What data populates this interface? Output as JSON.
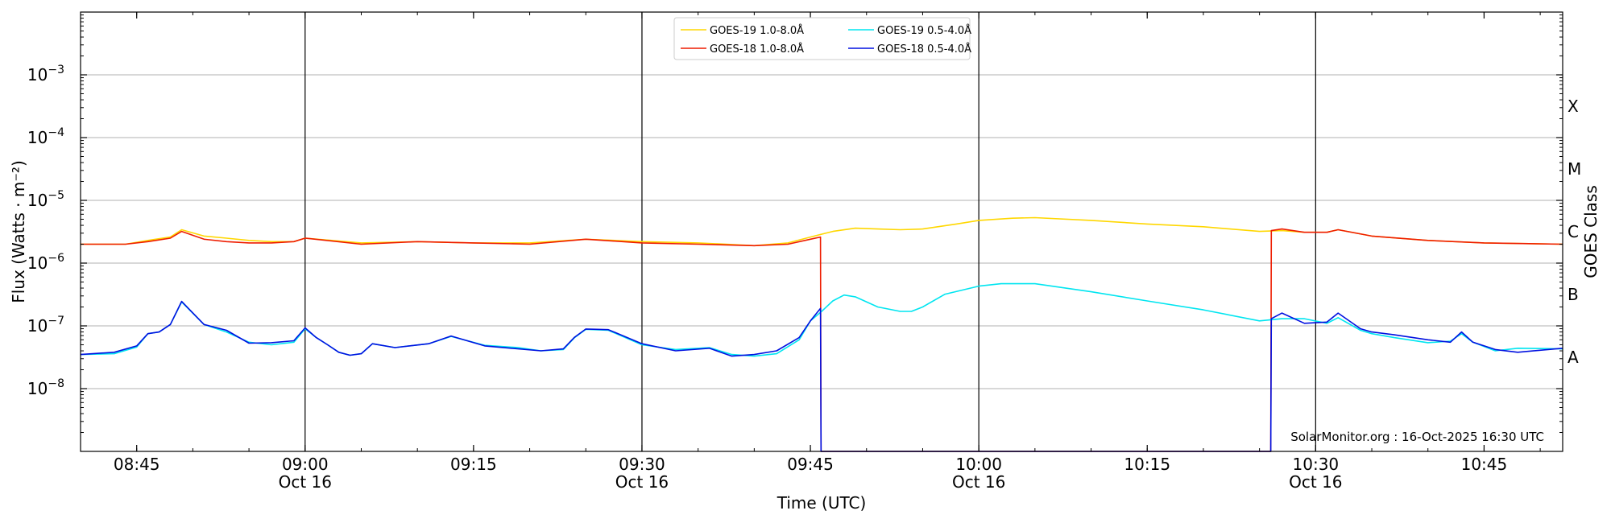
{
  "chart_data": {
    "type": "line",
    "xlabel": "Time (UTC)",
    "ylabel": "Flux (Watts · m⁻²)",
    "y2label": "GOES Class",
    "yscale": "log",
    "xlim": [
      "08:40",
      "10:52"
    ],
    "ylim": [
      1e-09,
      0.01
    ],
    "grid": "horizontal",
    "legend_position": "top-center",
    "credit": "SolarMonitor.org : 16-Oct-2025 16:30 UTC",
    "x_ticks": [
      {
        "time": "08:45",
        "label": "08:45",
        "sub": ""
      },
      {
        "time": "09:00",
        "label": "09:00",
        "sub": "Oct 16"
      },
      {
        "time": "09:15",
        "label": "09:15",
        "sub": ""
      },
      {
        "time": "09:30",
        "label": "09:30",
        "sub": "Oct 16"
      },
      {
        "time": "09:45",
        "label": "09:45",
        "sub": ""
      },
      {
        "time": "10:00",
        "label": "10:00",
        "sub": "Oct 16"
      },
      {
        "time": "10:15",
        "label": "10:15",
        "sub": ""
      },
      {
        "time": "10:30",
        "label": "10:30",
        "sub": "Oct 16"
      },
      {
        "time": "10:45",
        "label": "10:45",
        "sub": ""
      }
    ],
    "vlines": [
      "09:00",
      "09:30",
      "10:00",
      "10:30"
    ],
    "y_ticks": [
      {
        "exp": -8,
        "value": 1e-08
      },
      {
        "exp": -7,
        "value": 1e-07
      },
      {
        "exp": -6,
        "value": 1e-06
      },
      {
        "exp": -5,
        "value": 1e-05
      },
      {
        "exp": -4,
        "value": 0.0001
      },
      {
        "exp": -3,
        "value": 0.001
      }
    ],
    "classes": [
      {
        "label": "A",
        "value": 3.16e-08
      },
      {
        "label": "B",
        "value": 3.16e-07
      },
      {
        "label": "C",
        "value": 3.16e-06
      },
      {
        "label": "M",
        "value": 3.16e-05
      },
      {
        "label": "X",
        "value": 0.000316
      }
    ],
    "series": [
      {
        "name": "GOES-19 1.0-8.0Å",
        "color": "#ffd700",
        "x": [
          "08:40",
          "08:44",
          "08:46",
          "08:48",
          "08:49",
          "08:51",
          "08:53",
          "08:55",
          "08:57",
          "08:59",
          "09:00",
          "09:05",
          "09:10",
          "09:15",
          "09:20",
          "09:25",
          "09:30",
          "09:35",
          "09:40",
          "09:43",
          "09:45",
          "09:47",
          "09:49",
          "09:51",
          "09:53",
          "09:55",
          "09:58",
          "10:00",
          "10:03",
          "10:05",
          "10:10",
          "10:15",
          "10:20",
          "10:25",
          "10:27",
          "10:29",
          "10:31",
          "10:32",
          "10:35",
          "10:40",
          "10:45",
          "10:52"
        ],
        "y": [
          2e-06,
          2e-06,
          2.3e-06,
          2.6e-06,
          3.4e-06,
          2.7e-06,
          2.5e-06,
          2.3e-06,
          2.2e-06,
          2.2e-06,
          2.5e-06,
          2.1e-06,
          2.2e-06,
          2.1e-06,
          2.1e-06,
          2.4e-06,
          2.2e-06,
          2.1e-06,
          1.9e-06,
          2.1e-06,
          2.6e-06,
          3.2e-06,
          3.6e-06,
          3.5e-06,
          3.4e-06,
          3.5e-06,
          4.2e-06,
          4.8e-06,
          5.2e-06,
          5.3e-06,
          4.8e-06,
          4.2e-06,
          3.8e-06,
          3.2e-06,
          3.3e-06,
          3.1e-06,
          3.1e-06,
          3.4e-06,
          2.7e-06,
          2.3e-06,
          2.1e-06,
          2e-06
        ]
      },
      {
        "name": "GOES-18 1.0-8.0Å",
        "color": "#ee1c00",
        "x": [
          "08:40",
          "08:44",
          "08:46",
          "08:48",
          "08:49",
          "08:51",
          "08:53",
          "08:55",
          "08:57",
          "08:59",
          "09:00",
          "09:05",
          "09:10",
          "09:15",
          "09:20",
          "09:25",
          "09:30",
          "09:35",
          "09:40",
          "09:43",
          "09:45",
          "09:45.9",
          "09:45.95",
          "09:46",
          "10:25.95",
          "10:26",
          "10:26.05",
          "10:27",
          "10:29",
          "10:31",
          "10:32",
          "10:35",
          "10:40",
          "10:45",
          "10:52"
        ],
        "y": [
          2e-06,
          2e-06,
          2.2e-06,
          2.5e-06,
          3.2e-06,
          2.4e-06,
          2.2e-06,
          2.1e-06,
          2.1e-06,
          2.2e-06,
          2.5e-06,
          2e-06,
          2.2e-06,
          2.1e-06,
          2e-06,
          2.4e-06,
          2.1e-06,
          2e-06,
          1.9e-06,
          2e-06,
          2.4e-06,
          2.6e-06,
          1e-09,
          1e-09,
          1e-09,
          1e-09,
          3.3e-06,
          3.5e-06,
          3.1e-06,
          3.1e-06,
          3.4e-06,
          2.7e-06,
          2.3e-06,
          2.1e-06,
          2e-06
        ]
      },
      {
        "name": "GOES-19 0.5-4.0Å",
        "color": "#00e5f0",
        "x": [
          "08:40",
          "08:43",
          "08:45",
          "08:46",
          "08:47",
          "08:48",
          "08:49",
          "08:51",
          "08:53",
          "08:55",
          "08:57",
          "08:59",
          "09:00",
          "09:01",
          "09:02",
          "09:03",
          "09:04",
          "09:05",
          "09:06",
          "09:08",
          "09:11",
          "09:13",
          "09:16",
          "09:19",
          "09:21",
          "09:23",
          "09:24",
          "09:25",
          "09:27",
          "09:30",
          "09:33",
          "09:36",
          "09:38",
          "09:40",
          "09:42",
          "09:44",
          "09:45",
          "09:46",
          "09:47",
          "09:48",
          "09:49",
          "09:51",
          "09:53",
          "09:54",
          "09:55",
          "09:57",
          "10:00",
          "10:02",
          "10:05",
          "10:10",
          "10:15",
          "10:20",
          "10:25",
          "10:27",
          "10:29",
          "10:31",
          "10:32",
          "10:34",
          "10:35",
          "10:37",
          "10:40",
          "10:42",
          "10:43",
          "10:44",
          "10:46",
          "10:48",
          "10:52"
        ],
        "y": [
          3.5e-08,
          3.6e-08,
          4.6e-08,
          7.5e-08,
          8e-08,
          1.05e-07,
          2.4e-07,
          1.05e-07,
          8e-08,
          5.5e-08,
          5e-08,
          5.5e-08,
          9e-08,
          6.5e-08,
          5e-08,
          3.8e-08,
          3.4e-08,
          3.6e-08,
          5.2e-08,
          4.5e-08,
          5.2e-08,
          6.8e-08,
          4.9e-08,
          4.5e-08,
          4e-08,
          4.2e-08,
          6.5e-08,
          8.8e-08,
          8.5e-08,
          5e-08,
          4.2e-08,
          4.5e-08,
          3.5e-08,
          3.3e-08,
          3.6e-08,
          6e-08,
          1.2e-07,
          1.7e-07,
          2.5e-07,
          3.1e-07,
          2.9e-07,
          2e-07,
          1.7e-07,
          1.7e-07,
          2e-07,
          3.2e-07,
          4.3e-07,
          4.7e-07,
          4.7e-07,
          3.5e-07,
          2.5e-07,
          1.8e-07,
          1.2e-07,
          1.3e-07,
          1.3e-07,
          1.1e-07,
          1.35e-07,
          8.5e-08,
          7.5e-08,
          6.5e-08,
          5.4e-08,
          5.7e-08,
          7.5e-08,
          5.5e-08,
          4e-08,
          4.4e-08,
          4.3e-08
        ]
      },
      {
        "name": "GOES-18 0.5-4.0Å",
        "color": "#0010e0",
        "x": [
          "08:40",
          "08:43",
          "08:45",
          "08:46",
          "08:47",
          "08:48",
          "08:49",
          "08:51",
          "08:53",
          "08:55",
          "08:57",
          "08:59",
          "09:00",
          "09:01",
          "09:02",
          "09:03",
          "09:04",
          "09:05",
          "09:06",
          "09:08",
          "09:11",
          "09:13",
          "09:16",
          "09:19",
          "09:21",
          "09:23",
          "09:24",
          "09:25",
          "09:27",
          "09:30",
          "09:33",
          "09:36",
          "09:38",
          "09:40",
          "09:42",
          "09:44",
          "09:45",
          "09:45.9",
          "09:45.95",
          "09:46",
          "10:25.95",
          "10:26",
          "10:26.05",
          "10:27",
          "10:29",
          "10:31",
          "10:32",
          "10:34",
          "10:35",
          "10:37",
          "10:40",
          "10:42",
          "10:43",
          "10:44",
          "10:46",
          "10:48",
          "10:52"
        ],
        "y": [
          3.5e-08,
          3.8e-08,
          4.8e-08,
          7.5e-08,
          8e-08,
          1.05e-07,
          2.45e-07,
          1.05e-07,
          8.5e-08,
          5.3e-08,
          5.4e-08,
          5.8e-08,
          9.3e-08,
          6.5e-08,
          5e-08,
          3.8e-08,
          3.4e-08,
          3.6e-08,
          5.2e-08,
          4.5e-08,
          5.2e-08,
          6.9e-08,
          4.8e-08,
          4.3e-08,
          4e-08,
          4.3e-08,
          6.6e-08,
          8.9e-08,
          8.7e-08,
          5.2e-08,
          4e-08,
          4.4e-08,
          3.3e-08,
          3.5e-08,
          4e-08,
          6.5e-08,
          1.2e-07,
          1.9e-07,
          1e-09,
          1e-09,
          1e-09,
          1e-09,
          1.3e-07,
          1.6e-07,
          1.1e-07,
          1.15e-07,
          1.6e-07,
          9e-08,
          8e-08,
          7.2e-08,
          6e-08,
          5.5e-08,
          8e-08,
          5.5e-08,
          4.2e-08,
          3.8e-08,
          4.4e-08
        ]
      }
    ]
  }
}
